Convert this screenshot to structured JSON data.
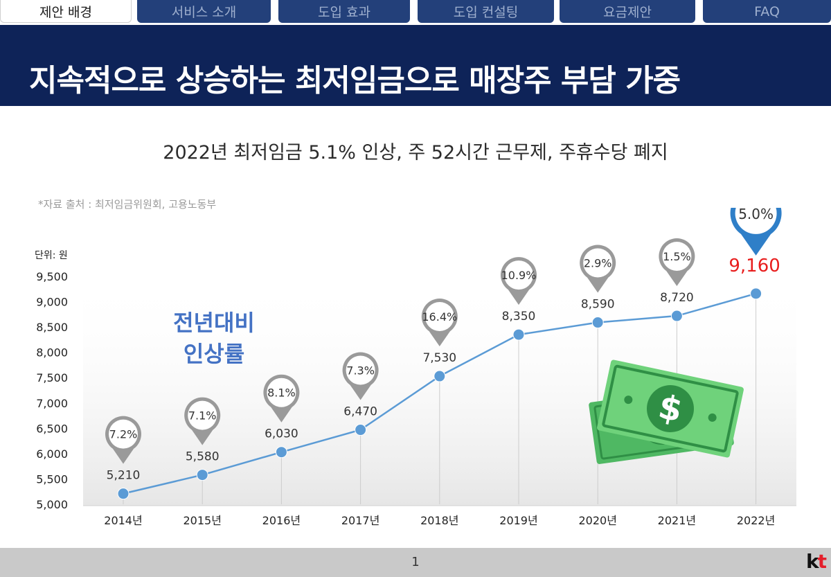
{
  "tabs": [
    {
      "label": "제안 배경",
      "active": true
    },
    {
      "label": "서비스 소개",
      "active": false
    },
    {
      "label": "도입 효과",
      "active": false
    },
    {
      "label": "도입 컨설팅",
      "active": false
    },
    {
      "label": "요금제안",
      "active": false
    },
    {
      "label": "FAQ",
      "active": false
    }
  ],
  "header": {
    "title": "지속적으로 상승하는 최저임금으로 매장주 부담 가중"
  },
  "subtitle": "2022년 최저임금 5.1% 인상, 주 52시간 근무제, 주휴수당 폐지",
  "source_note": "*자료 출처 : 최저임금위원회, 고용노동부",
  "footer": {
    "page_number": "1",
    "logo_k": "k",
    "logo_t": "t"
  },
  "colors": {
    "header_bg": "#0e2358",
    "tab_bg": "#23407a",
    "line": "#5b9bd5",
    "highlight": "#e81d1d",
    "pin_gray": "#9a9a9a",
    "pin_blue": "#2f7fc8",
    "annotation": "#4472c4",
    "money_green": "#5cc46b"
  },
  "icons": [
    "money-bills-icon",
    "map-pin-icon"
  ],
  "chart_data": {
    "type": "line",
    "unit_label": "단위: 원",
    "annotation": "전년대비\n인상률",
    "categories": [
      "2014년",
      "2015년",
      "2016년",
      "2017년",
      "2018년",
      "2019년",
      "2020년",
      "2021년",
      "2022년"
    ],
    "values": [
      5210,
      5580,
      6030,
      6470,
      7530,
      8350,
      8590,
      8720,
      9160
    ],
    "value_labels": [
      "5,210",
      "5,580",
      "6,030",
      "6,470",
      "7,530",
      "8,350",
      "8,590",
      "8,720",
      "9,160"
    ],
    "growth_rates": [
      "7.2%",
      "7.1%",
      "8.1%",
      "7.3%",
      "16.4%",
      "10.9%",
      "2.9%",
      "1.5%",
      "5.0%"
    ],
    "highlight_index": 8,
    "yticks": [
      "5,000",
      "5,500",
      "6,000",
      "6,500",
      "7,000",
      "7,500",
      "8,000",
      "8,500",
      "9,000",
      "9,500"
    ],
    "ylim": [
      5000,
      9500
    ],
    "grid": false
  }
}
